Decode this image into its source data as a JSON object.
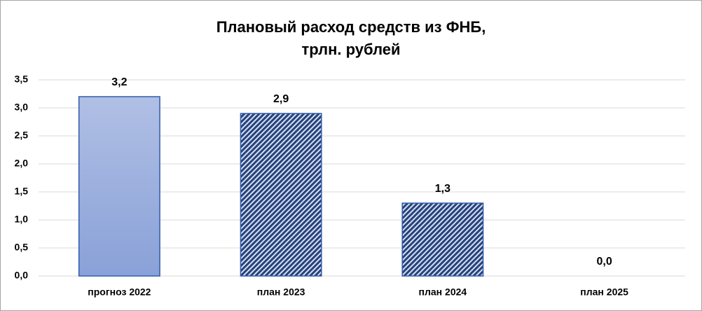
{
  "chart_data": {
    "type": "bar",
    "title": [
      "Плановый расход средств из ФНБ,",
      "трлн. рублей"
    ],
    "categories": [
      "прогноз 2022",
      "план 2023",
      "план 2024",
      "план 2025"
    ],
    "values": [
      3.2,
      2.9,
      1.3,
      0.0
    ],
    "value_labels": [
      "3,2",
      "2,9",
      "1,3",
      "0,0"
    ],
    "fills": [
      "gradient",
      "hatch",
      "hatch",
      "hatch"
    ],
    "color": "#8fa6da",
    "edge_color": "#2f5caa",
    "ylim": [
      0,
      3.5
    ],
    "yticks": [
      {
        "value": 0,
        "label": "0,0"
      },
      {
        "value": 0.5,
        "label": "0,5"
      },
      {
        "value": 1,
        "label": "1,0"
      },
      {
        "value": 1.5,
        "label": "1,5"
      },
      {
        "value": 2,
        "label": "2,0"
      },
      {
        "value": 2.5,
        "label": "2,5"
      },
      {
        "value": 3,
        "label": "3,0"
      },
      {
        "value": 3.5,
        "label": "3,5"
      }
    ],
    "grid": true
  }
}
